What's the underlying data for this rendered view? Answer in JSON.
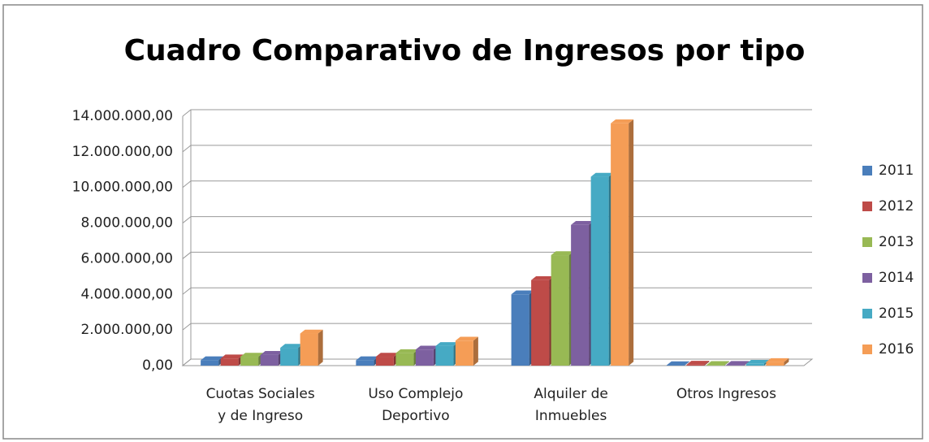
{
  "chart_data": {
    "type": "bar3d",
    "title": "Cuadro Comparativo de Ingresos por tipo",
    "categories": [
      [
        "Cuotas Sociales",
        "y de Ingreso"
      ],
      [
        "Uso Complejo",
        "Deportivo"
      ],
      [
        "Alquiler de",
        "Inmuebles"
      ],
      [
        "Otros Ingresos"
      ]
    ],
    "series": [
      {
        "name": "2011",
        "color": "#4a7ebb",
        "values": [
          300000,
          300000,
          4000000,
          20000
        ]
      },
      {
        "name": "2012",
        "color": "#be4b48",
        "values": [
          400000,
          500000,
          4800000,
          50000
        ]
      },
      {
        "name": "2013",
        "color": "#98b954",
        "values": [
          500000,
          700000,
          6200000,
          30000
        ]
      },
      {
        "name": "2014",
        "color": "#7d60a0",
        "values": [
          600000,
          900000,
          7900000,
          40000
        ]
      },
      {
        "name": "2015",
        "color": "#46aac4",
        "values": [
          1000000,
          1100000,
          10600000,
          100000
        ]
      },
      {
        "name": "2016",
        "color": "#f59d56",
        "values": [
          1800000,
          1400000,
          13600000,
          200000
        ]
      }
    ],
    "ylim": [
      0,
      14000000
    ],
    "yticks": [
      {
        "value": 0,
        "label": "0,00"
      },
      {
        "value": 2000000,
        "label": "2.000.000,00"
      },
      {
        "value": 4000000,
        "label": "4.000.000,00"
      },
      {
        "value": 6000000,
        "label": "6.000.000,00"
      },
      {
        "value": 8000000,
        "label": "8.000.000,00"
      },
      {
        "value": 10000000,
        "label": "10.000.000,00"
      },
      {
        "value": 12000000,
        "label": "12.000.000,00"
      },
      {
        "value": 14000000,
        "label": "14.000.000,00"
      }
    ],
    "grid": true,
    "legend": "right"
  }
}
